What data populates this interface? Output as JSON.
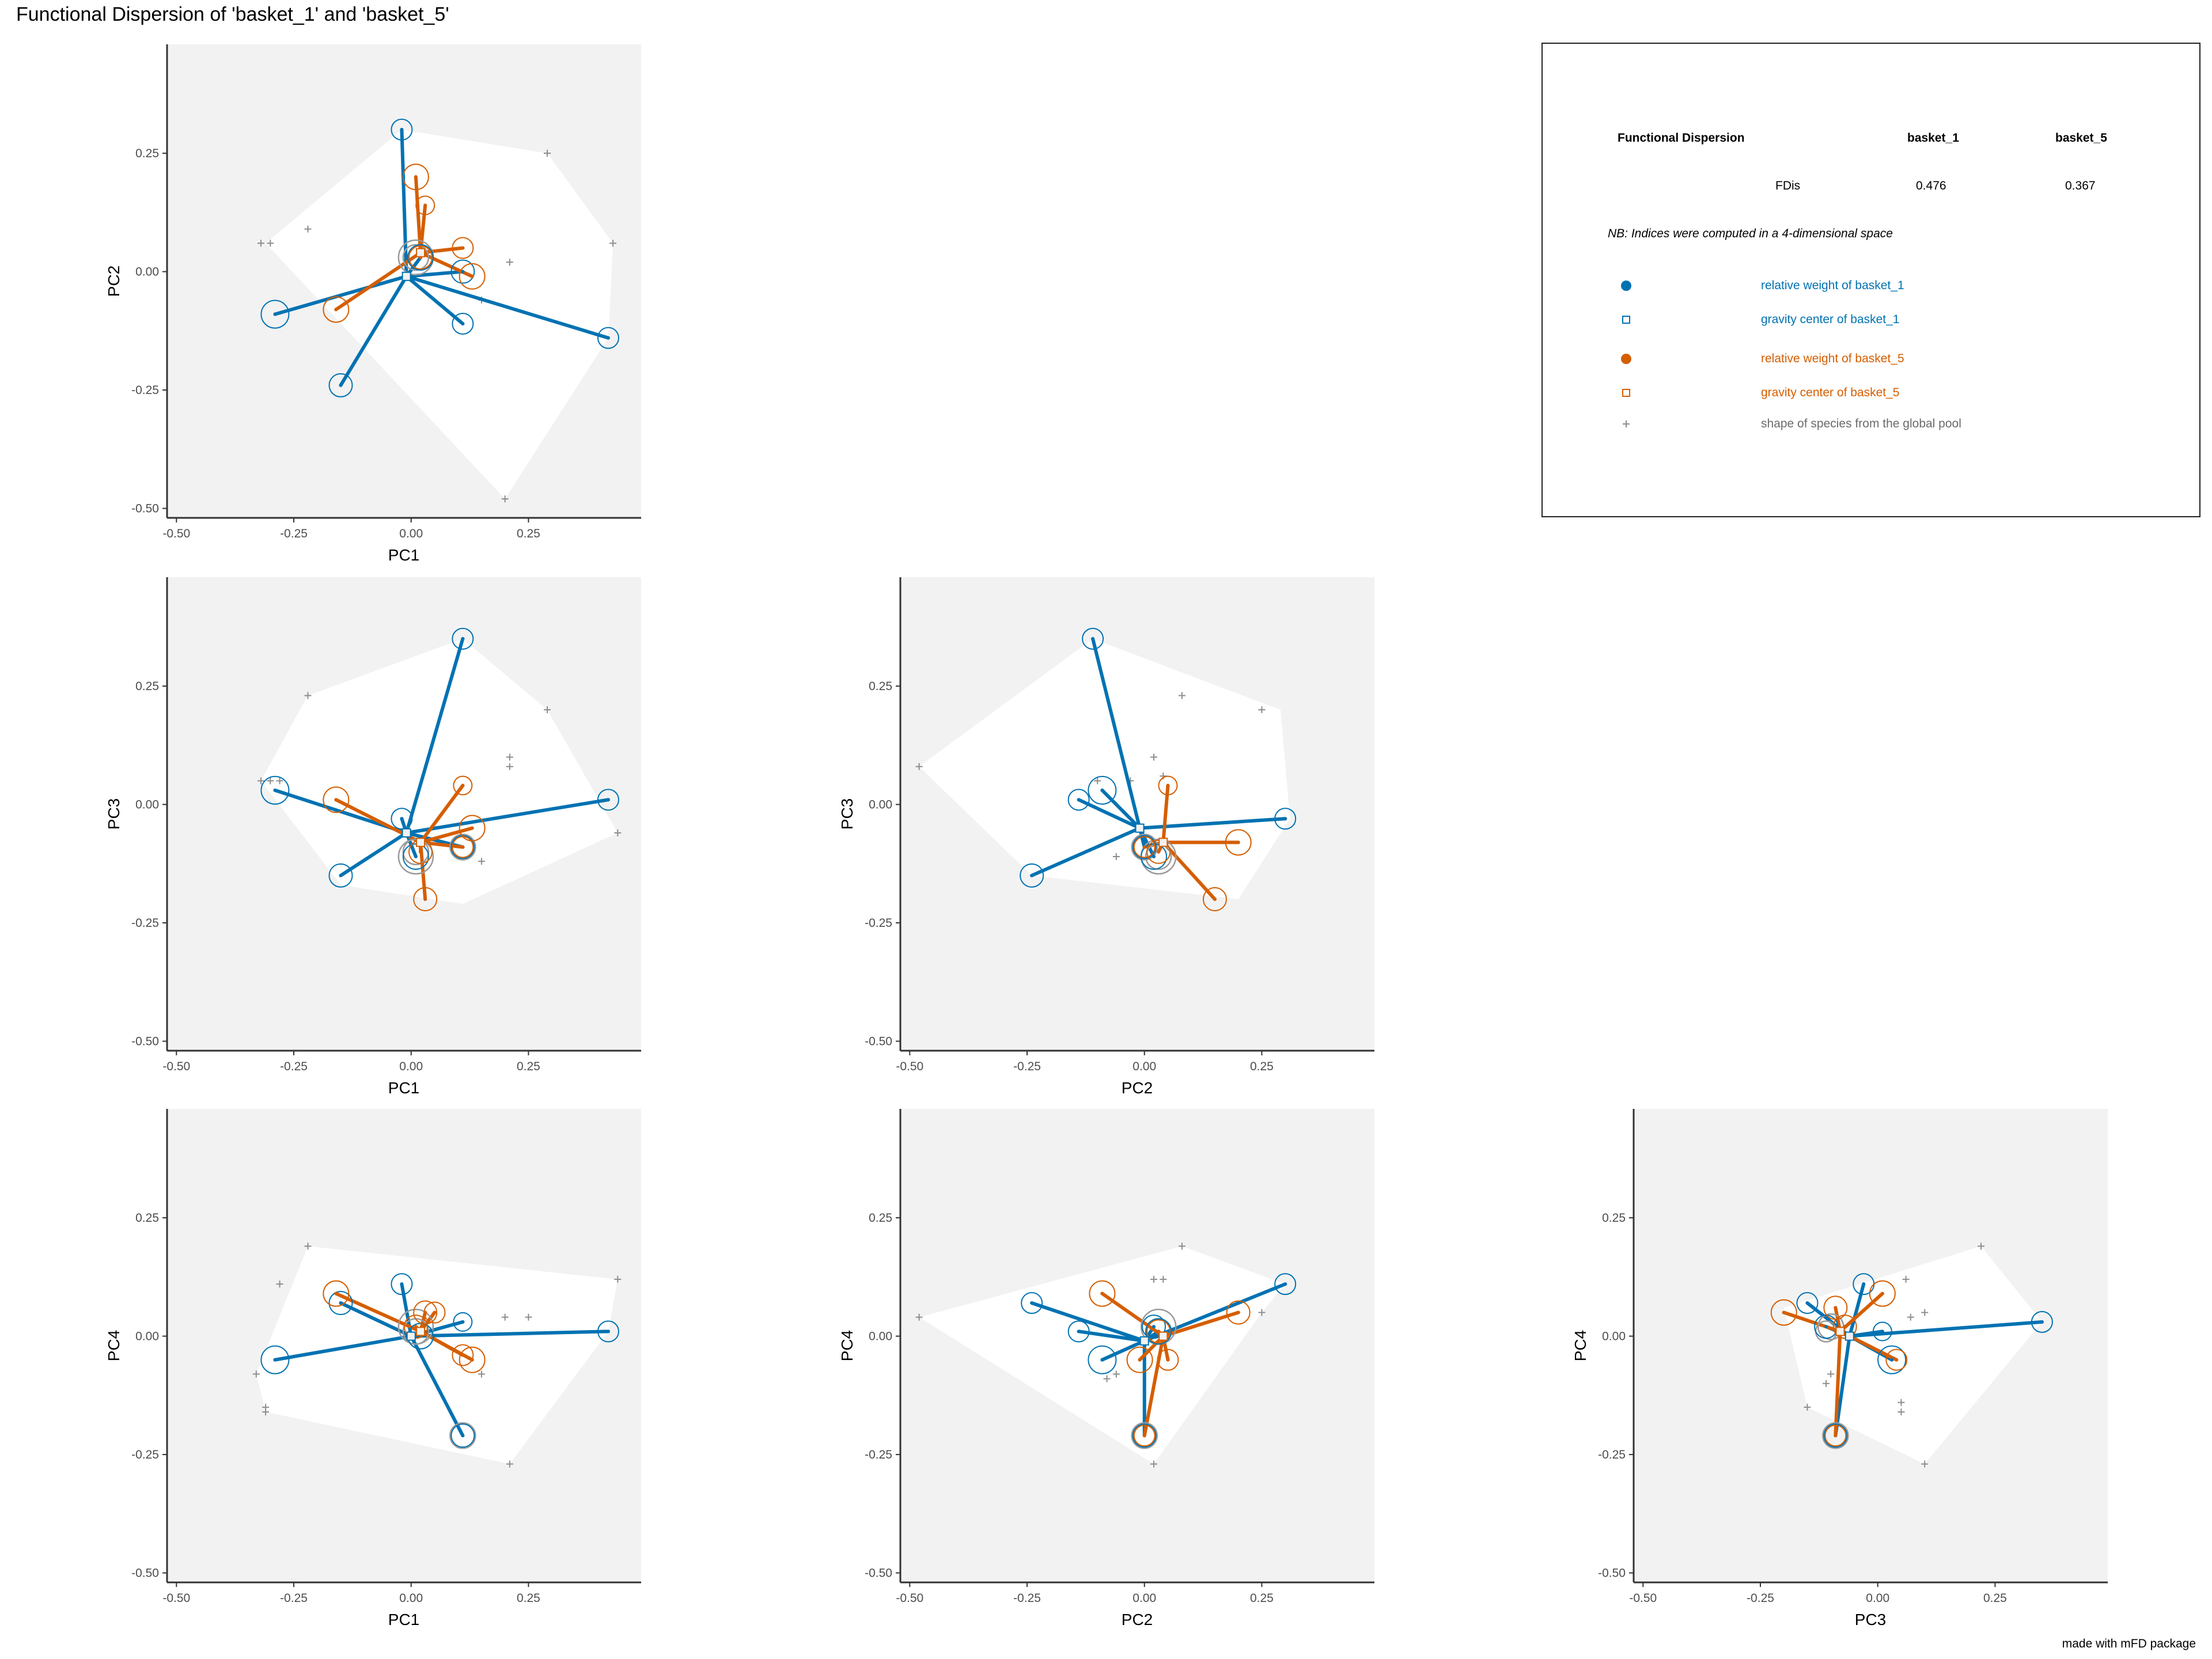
{
  "title": "Functional Dispersion of 'basket_1' and 'basket_5'",
  "caption": "made with mFD package",
  "colors": {
    "basket_1": "#0072B2",
    "basket_5": "#D55E00",
    "pool": "#8c8c8c",
    "panel_bg": "#f2f2f2",
    "hull": "#ffffff"
  },
  "legend": {
    "header_label": "Functional Dispersion",
    "col1": "basket_1",
    "col2": "basket_5",
    "row_label": "FDis",
    "val1": "0.476",
    "val2": "0.367",
    "note": "NB: Indices were computed in a 4-dimensional space",
    "items": [
      {
        "label": "relative weight of basket_1",
        "icon": "filled-circle-icon",
        "color": "#0072B2"
      },
      {
        "label": "gravity center of basket_1",
        "icon": "open-square-icon",
        "color": "#0072B2"
      },
      {
        "label": "relative weight of basket_5",
        "icon": "filled-circle-icon",
        "color": "#D55E00"
      },
      {
        "label": "gravity center of basket_5",
        "icon": "open-square-icon",
        "color": "#D55E00"
      },
      {
        "label": "shape of species from the global pool",
        "icon": "plus-icon",
        "color": "#8c8c8c"
      }
    ]
  },
  "chart_data": [
    {
      "type": "scatter",
      "xlabel": "PC1",
      "ylabel": "PC2",
      "xlim": [
        -0.52,
        0.49
      ],
      "ylim": [
        -0.52,
        0.48
      ],
      "ticks": [
        -0.5,
        -0.25,
        0.0,
        0.25
      ],
      "tick_labels": [
        "-0.50",
        "-0.25",
        "0.00",
        "0.25"
      ],
      "hull": [
        [
          -0.02,
          0.3
        ],
        [
          0.29,
          0.25
        ],
        [
          0.43,
          0.06
        ],
        [
          0.42,
          -0.14
        ],
        [
          0.2,
          -0.48
        ],
        [
          -0.31,
          0.06
        ]
      ],
      "pool": [
        [
          0.29,
          0.25
        ],
        [
          0.43,
          0.06
        ],
        [
          -0.22,
          0.09
        ],
        [
          -0.32,
          0.06
        ],
        [
          -0.3,
          0.06
        ],
        [
          0.21,
          0.02
        ],
        [
          0.15,
          -0.06
        ],
        [
          0.2,
          -0.48
        ]
      ],
      "center_b1": [
        -0.01,
        -0.01
      ],
      "center_b5": [
        0.02,
        0.04
      ],
      "b1": [
        [
          -0.02,
          0.3,
          18
        ],
        [
          -0.29,
          -0.09,
          24
        ],
        [
          -0.15,
          -0.24,
          20
        ],
        [
          0.11,
          -0.11,
          18
        ],
        [
          0.42,
          -0.14,
          18
        ],
        [
          0.11,
          0.0,
          20
        ],
        [
          0.02,
          0.03,
          22
        ]
      ],
      "b5": [
        [
          0.01,
          0.2,
          22
        ],
        [
          0.03,
          0.14,
          16
        ],
        [
          -0.16,
          -0.08,
          22
        ],
        [
          0.11,
          0.05,
          18
        ],
        [
          0.13,
          -0.01,
          22
        ],
        [
          0.02,
          0.03,
          20
        ]
      ],
      "grey": [
        [
          0.01,
          0.03,
          22
        ],
        [
          0.01,
          0.03,
          30
        ]
      ]
    },
    {
      "type": "scatter",
      "xlabel": "PC1",
      "ylabel": "PC3",
      "xlim": [
        -0.52,
        0.49
      ],
      "ylim": [
        -0.52,
        0.48
      ],
      "ticks": [
        -0.5,
        -0.25,
        0.0,
        0.25
      ],
      "tick_labels": [
        "-0.50",
        "-0.25",
        "0.00",
        "0.25"
      ],
      "hull": [
        [
          -0.22,
          0.23
        ],
        [
          0.11,
          0.35
        ],
        [
          0.29,
          0.2
        ],
        [
          0.44,
          -0.06
        ],
        [
          0.11,
          -0.21
        ],
        [
          -0.15,
          -0.17
        ],
        [
          -0.32,
          0.05
        ]
      ],
      "pool": [
        [
          -0.22,
          0.23
        ],
        [
          0.29,
          0.2
        ],
        [
          0.21,
          0.1
        ],
        [
          0.21,
          0.08
        ],
        [
          -0.32,
          0.05
        ],
        [
          -0.3,
          0.05
        ],
        [
          -0.28,
          0.05
        ],
        [
          0.44,
          -0.06
        ],
        [
          0.15,
          -0.12
        ]
      ],
      "center_b1": [
        -0.01,
        -0.06
      ],
      "center_b5": [
        0.02,
        -0.08
      ],
      "b1": [
        [
          0.11,
          0.35,
          18
        ],
        [
          -0.29,
          0.03,
          24
        ],
        [
          -0.15,
          -0.15,
          20
        ],
        [
          0.42,
          0.01,
          18
        ],
        [
          0.11,
          -0.09,
          20
        ],
        [
          -0.02,
          -0.03,
          18
        ],
        [
          0.01,
          -0.11,
          22
        ]
      ],
      "b5": [
        [
          -0.16,
          0.01,
          22
        ],
        [
          0.11,
          0.04,
          16
        ],
        [
          0.13,
          -0.05,
          22
        ],
        [
          0.03,
          -0.2,
          20
        ],
        [
          0.11,
          -0.09,
          18
        ],
        [
          0.02,
          -0.1,
          20
        ]
      ],
      "grey": [
        [
          0.01,
          -0.1,
          22
        ],
        [
          0.01,
          -0.11,
          30
        ],
        [
          0.11,
          -0.09,
          22
        ]
      ]
    },
    {
      "type": "scatter",
      "xlabel": "PC2",
      "ylabel": "PC3",
      "xlim": [
        -0.52,
        0.49
      ],
      "ylim": [
        -0.52,
        0.48
      ],
      "ticks": [
        -0.5,
        -0.25,
        0.0,
        0.25
      ],
      "tick_labels": [
        "-0.50",
        "-0.25",
        "0.00",
        "0.25"
      ],
      "hull": [
        [
          -0.11,
          0.35
        ],
        [
          0.29,
          0.2
        ],
        [
          0.31,
          -0.03
        ],
        [
          0.2,
          -0.2
        ],
        [
          -0.24,
          -0.15
        ],
        [
          -0.48,
          0.08
        ]
      ],
      "pool": [
        [
          -0.48,
          0.08
        ],
        [
          0.08,
          0.23
        ],
        [
          0.25,
          0.2
        ],
        [
          0.02,
          0.1
        ],
        [
          0.04,
          0.06
        ],
        [
          -0.03,
          0.05
        ],
        [
          -0.1,
          0.05
        ],
        [
          -0.06,
          -0.11
        ]
      ],
      "center_b1": [
        -0.01,
        -0.05
      ],
      "center_b5": [
        0.04,
        -0.08
      ],
      "b1": [
        [
          -0.11,
          0.35,
          18
        ],
        [
          -0.24,
          -0.15,
          20
        ],
        [
          -0.14,
          0.01,
          18
        ],
        [
          0.3,
          -0.03,
          18
        ],
        [
          -0.09,
          0.03,
          24
        ],
        [
          0.0,
          -0.09,
          20
        ],
        [
          0.02,
          -0.11,
          22
        ]
      ],
      "b5": [
        [
          0.05,
          0.04,
          16
        ],
        [
          0.2,
          -0.08,
          22
        ],
        [
          0.15,
          -0.2,
          20
        ],
        [
          0.0,
          -0.09,
          18
        ],
        [
          0.03,
          -0.1,
          20
        ]
      ],
      "grey": [
        [
          0.03,
          -0.11,
          22
        ],
        [
          0.03,
          -0.11,
          30
        ],
        [
          0.0,
          -0.09,
          22
        ]
      ]
    },
    {
      "type": "scatter",
      "xlabel": "PC1",
      "ylabel": "PC4",
      "xlim": [
        -0.52,
        0.49
      ],
      "ylim": [
        -0.52,
        0.48
      ],
      "ticks": [
        -0.5,
        -0.25,
        0.0,
        0.25
      ],
      "tick_labels": [
        "-0.50",
        "-0.25",
        "0.00",
        "0.25"
      ],
      "hull": [
        [
          -0.22,
          0.19
        ],
        [
          0.44,
          0.12
        ],
        [
          0.42,
          0.01
        ],
        [
          0.21,
          -0.27
        ],
        [
          -0.31,
          -0.16
        ],
        [
          -0.33,
          -0.08
        ]
      ],
      "pool": [
        [
          -0.22,
          0.19
        ],
        [
          0.44,
          0.12
        ],
        [
          -0.28,
          0.11
        ],
        [
          0.2,
          0.04
        ],
        [
          0.25,
          0.04
        ],
        [
          0.15,
          -0.08
        ],
        [
          -0.33,
          -0.08
        ],
        [
          -0.31,
          -0.15
        ],
        [
          -0.31,
          -0.16
        ],
        [
          0.21,
          -0.27
        ]
      ],
      "center_b1": [
        0.0,
        0.0
      ],
      "center_b5": [
        0.02,
        0.01
      ],
      "b1": [
        [
          -0.02,
          0.11,
          18
        ],
        [
          -0.15,
          0.07,
          20
        ],
        [
          -0.29,
          -0.05,
          24
        ],
        [
          0.11,
          0.03,
          16
        ],
        [
          0.42,
          0.01,
          18
        ],
        [
          0.11,
          -0.21,
          20
        ],
        [
          0.02,
          0.0,
          22
        ]
      ],
      "b5": [
        [
          -0.16,
          0.09,
          22
        ],
        [
          0.03,
          0.05,
          20
        ],
        [
          0.05,
          0.05,
          18
        ],
        [
          0.11,
          -0.04,
          18
        ],
        [
          0.13,
          -0.05,
          22
        ],
        [
          0.01,
          0.02,
          20
        ]
      ],
      "grey": [
        [
          0.11,
          -0.21,
          22
        ],
        [
          0.01,
          0.01,
          22
        ],
        [
          0.01,
          0.02,
          30
        ]
      ]
    },
    {
      "type": "scatter",
      "xlabel": "PC2",
      "ylabel": "PC4",
      "xlim": [
        -0.52,
        0.49
      ],
      "ylim": [
        -0.52,
        0.48
      ],
      "ticks": [
        -0.5,
        -0.25,
        0.0,
        0.25
      ],
      "tick_labels": [
        "-0.50",
        "-0.25",
        "0.00",
        "0.25"
      ],
      "hull": [
        [
          -0.48,
          0.04
        ],
        [
          0.08,
          0.19
        ],
        [
          0.3,
          0.11
        ],
        [
          0.25,
          0.05
        ],
        [
          0.02,
          -0.27
        ]
      ],
      "pool": [
        [
          -0.48,
          0.04
        ],
        [
          0.08,
          0.19
        ],
        [
          0.02,
          0.12
        ],
        [
          0.04,
          0.12
        ],
        [
          0.25,
          0.05
        ],
        [
          -0.06,
          -0.08
        ],
        [
          -0.08,
          -0.09
        ],
        [
          0.02,
          -0.27
        ]
      ],
      "center_b1": [
        0.0,
        -0.01
      ],
      "center_b5": [
        0.04,
        0.0
      ],
      "b1": [
        [
          -0.24,
          0.07,
          18
        ],
        [
          -0.14,
          0.01,
          18
        ],
        [
          -0.09,
          -0.05,
          24
        ],
        [
          0.3,
          0.11,
          18
        ],
        [
          0.0,
          -0.21,
          20
        ],
        [
          0.02,
          0.02,
          20
        ],
        [
          0.03,
          0.01,
          22
        ]
      ],
      "b5": [
        [
          -0.09,
          0.09,
          22
        ],
        [
          0.2,
          0.05,
          20
        ],
        [
          0.05,
          -0.05,
          18
        ],
        [
          0.0,
          -0.21,
          18
        ],
        [
          -0.01,
          -0.05,
          22
        ],
        [
          0.03,
          0.01,
          20
        ]
      ],
      "grey": [
        [
          0.0,
          -0.21,
          22
        ],
        [
          0.03,
          0.01,
          22
        ],
        [
          0.03,
          0.02,
          30
        ]
      ]
    },
    {
      "type": "scatter",
      "xlabel": "PC3",
      "ylabel": "PC4",
      "xlim": [
        -0.52,
        0.49
      ],
      "ylim": [
        -0.52,
        0.48
      ],
      "ticks": [
        -0.5,
        -0.25,
        0.0,
        0.25
      ],
      "tick_labels": [
        "-0.50",
        "-0.25",
        "0.00",
        "0.25"
      ],
      "hull": [
        [
          -0.2,
          0.06
        ],
        [
          0.22,
          0.19
        ],
        [
          0.35,
          0.03
        ],
        [
          0.1,
          -0.27
        ],
        [
          -0.15,
          -0.15
        ]
      ],
      "pool": [
        [
          0.22,
          0.19
        ],
        [
          0.06,
          0.12
        ],
        [
          0.07,
          0.04
        ],
        [
          0.1,
          0.05
        ],
        [
          -0.1,
          -0.08
        ],
        [
          0.05,
          -0.14
        ],
        [
          0.05,
          -0.16
        ],
        [
          0.1,
          -0.27
        ],
        [
          -0.15,
          -0.15
        ],
        [
          -0.11,
          -0.1
        ]
      ],
      "center_b1": [
        -0.06,
        0.0
      ],
      "center_b5": [
        -0.08,
        0.01
      ],
      "b1": [
        [
          -0.15,
          0.07,
          18
        ],
        [
          -0.03,
          0.11,
          18
        ],
        [
          0.35,
          0.03,
          18
        ],
        [
          0.01,
          0.01,
          16
        ],
        [
          0.03,
          -0.05,
          24
        ],
        [
          -0.09,
          -0.21,
          20
        ],
        [
          -0.11,
          0.02,
          20
        ]
      ],
      "b5": [
        [
          -0.2,
          0.05,
          22
        ],
        [
          -0.09,
          0.06,
          20
        ],
        [
          0.01,
          0.09,
          22
        ],
        [
          0.04,
          -0.05,
          18
        ],
        [
          -0.09,
          -0.21,
          18
        ],
        [
          -0.07,
          0.02,
          20
        ]
      ],
      "grey": [
        [
          -0.09,
          -0.21,
          22
        ],
        [
          -0.1,
          0.02,
          22
        ],
        [
          -0.11,
          0.01,
          18
        ]
      ]
    }
  ]
}
